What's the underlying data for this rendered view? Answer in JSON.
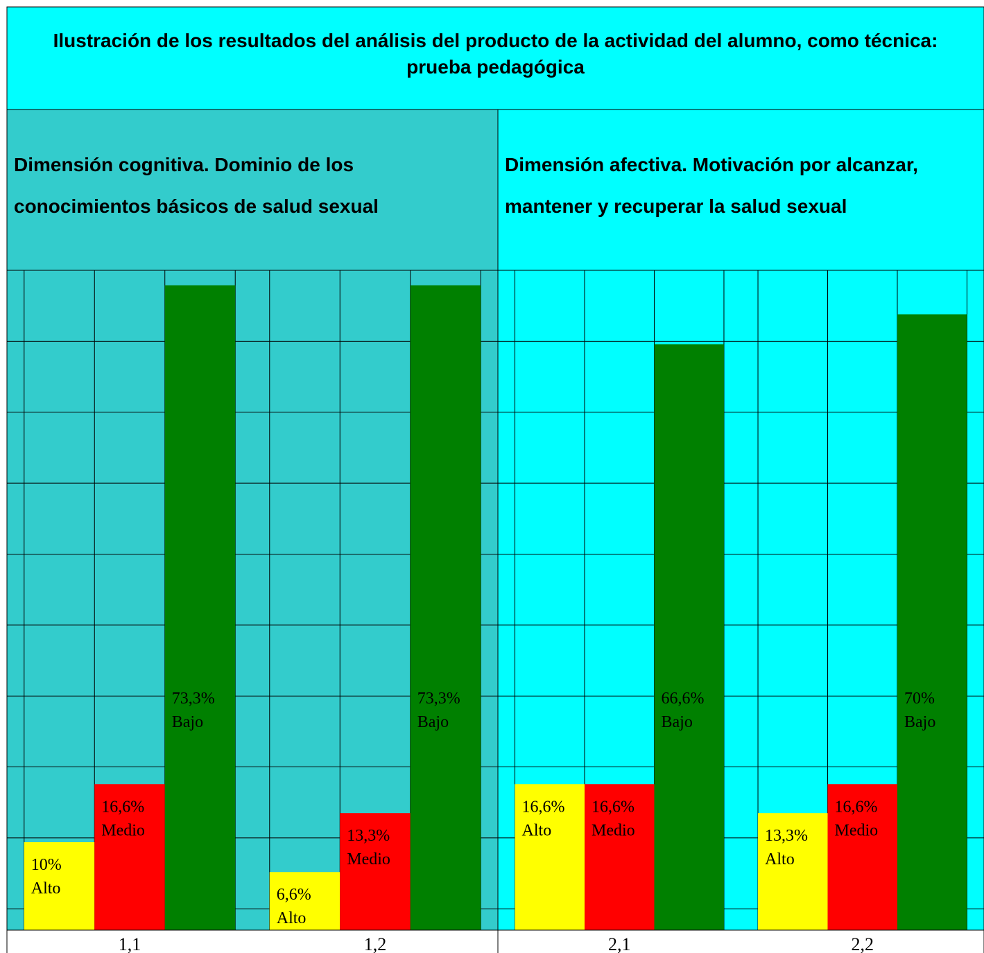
{
  "title": "Ilustración de los resultados del análisis del producto de la actividad del alumno, como técnica: prueba pedagógica",
  "chart_data": [
    {
      "type": "bar",
      "title": "Dimensión cognitiva. Dominio de los conocimientos básicos de salud sexual",
      "background": "#33cccc",
      "categories": [
        "1,1",
        "1,2"
      ],
      "series": [
        {
          "name": "Alto",
          "color": "#ffff00",
          "values": [
            10,
            6.6
          ],
          "value_labels": [
            "10%",
            "6,6%"
          ]
        },
        {
          "name": "Medio",
          "color": "#ff0000",
          "values": [
            16.6,
            13.3
          ],
          "value_labels": [
            "16,6%",
            "13,3%"
          ]
        },
        {
          "name": "Bajo",
          "color": "#008000",
          "values": [
            73.3,
            73.3
          ],
          "value_labels": [
            "73,3%",
            "73,3%"
          ]
        }
      ],
      "ylim": [
        0,
        75
      ]
    },
    {
      "type": "bar",
      "title": "Dimensión afectiva. Motivación por alcanzar, mantener y recuperar la salud sexual",
      "background": "#00ffff",
      "categories": [
        "2,1",
        "2,2"
      ],
      "series": [
        {
          "name": "Alto",
          "color": "#ffff00",
          "values": [
            16.6,
            13.3
          ],
          "value_labels": [
            "16,6%",
            "13,3%"
          ]
        },
        {
          "name": "Medio",
          "color": "#ff0000",
          "values": [
            16.6,
            16.6
          ],
          "value_labels": [
            "16,6%",
            "16,6%"
          ]
        },
        {
          "name": "Bajo",
          "color": "#008000",
          "values": [
            66.6,
            70
          ],
          "value_labels": [
            "66,6%",
            "70%"
          ]
        }
      ],
      "ylim": [
        0,
        75
      ]
    }
  ]
}
